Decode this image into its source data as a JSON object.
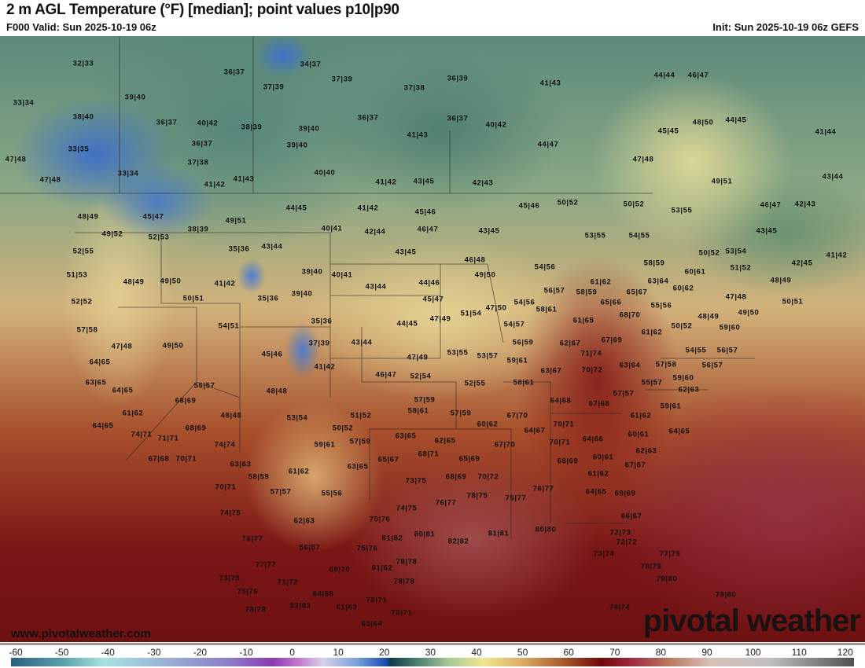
{
  "header": {
    "title": "2 m AGL Temperature (°F) [median]; point values p10|p90",
    "valid": "F000 Valid: Sun 2025-10-19 06z",
    "init": "Init: Sun 2025-10-19 06z GEFS"
  },
  "branding": {
    "url": "www.pivotalweather.com",
    "logo": "pivotal weather"
  },
  "colorbar": {
    "units": "°F",
    "ticks": [
      "-60",
      "-50",
      "-40",
      "-30",
      "-20",
      "-10",
      "0",
      "10",
      "20",
      "30",
      "40",
      "50",
      "60",
      "70",
      "80",
      "90",
      "100",
      "110",
      "120"
    ]
  },
  "point_values": [
    "32|33",
    "36|37",
    "34|37",
    "37|39",
    "37|39",
    "37|38",
    "36|39",
    "41|43",
    "44|44",
    "46|47",
    "39|40",
    "33|34",
    "38|40",
    "36|37",
    "40|42",
    "38|39",
    "39|40",
    "36|37",
    "36|37",
    "40|42",
    "45|45",
    "48|50",
    "44|45",
    "41|44",
    "41|43",
    "44|47",
    "33|35",
    "36|37",
    "39|40",
    "47|48",
    "37|38",
    "47|48",
    "33|34",
    "41|43",
    "40|40",
    "41|42",
    "43|45",
    "42|43",
    "49|51",
    "43|44",
    "47|48",
    "41|42",
    "48|49",
    "50|52",
    "50|52",
    "53|55",
    "46|47",
    "42|43",
    "45|46",
    "44|45",
    "41|42",
    "45|46",
    "45|47",
    "49|51",
    "40|41",
    "42|44",
    "46|47",
    "43|45",
    "38|39",
    "49|52",
    "52|53",
    "43|45",
    "53|55",
    "54|55",
    "35|36",
    "43|44",
    "43|45",
    "52|55",
    "50|52",
    "53|54",
    "41|42",
    "46|48",
    "42|45",
    "54|56",
    "58|59",
    "51|52",
    "51|53",
    "39|40",
    "40|41",
    "49|50",
    "60|61",
    "63|64",
    "48|49",
    "48|49",
    "49|50",
    "41|42",
    "43|44",
    "44|46",
    "61|62",
    "60|62",
    "56|57",
    "58|59",
    "65|67",
    "52|52",
    "50|51",
    "35|36",
    "39|40",
    "45|47",
    "54|56",
    "65|66",
    "55|56",
    "47|48",
    "50|51",
    "47|50",
    "58|61",
    "51|54",
    "68|70",
    "48|49",
    "49|50",
    "57|58",
    "54|51",
    "35|36",
    "44|45",
    "47|49",
    "54|57",
    "61|65",
    "50|52",
    "61|62",
    "59|60",
    "47|48",
    "49|50",
    "37|39",
    "43|44",
    "56|59",
    "62|67",
    "67|69",
    "54|55",
    "56|57",
    "53|55",
    "53|57",
    "71|74",
    "45|46",
    "47|49",
    "59|61",
    "64|65",
    "41|42",
    "63|64",
    "57|58",
    "56|57",
    "63|67",
    "70|72",
    "46|47",
    "52|54",
    "63|65",
    "58|61",
    "55|57",
    "59|60",
    "56|57",
    "52|55",
    "64|65",
    "48|48",
    "62|63",
    "57|57",
    "57|59",
    "68|69",
    "64|68",
    "67|68",
    "59|61",
    "61|62",
    "48|48",
    "51|52",
    "58|61",
    "57|59",
    "53|54",
    "67|70",
    "61|62",
    "60|62",
    "64|65",
    "68|69",
    "70|71",
    "50|52",
    "64|67",
    "64|66",
    "60|61",
    "64|65",
    "74|71",
    "71|71",
    "63|65",
    "62|65",
    "74|74",
    "59|61",
    "57|59",
    "67|70",
    "70|71",
    "62|63",
    "67|68",
    "70|71",
    "68|71",
    "63|63",
    "65|67",
    "65|69",
    "68|69",
    "60|61",
    "67|67",
    "63|65",
    "61|62",
    "58|59",
    "70|72",
    "61|62",
    "68|69",
    "73|75",
    "70|71",
    "57|57",
    "55|56",
    "76|77",
    "64|65",
    "69|69",
    "76|77",
    "78|75",
    "76|77",
    "74|75",
    "74|75",
    "62|63",
    "75|76",
    "66|67",
    "80|81",
    "81|82",
    "82|82",
    "81|81",
    "80|80",
    "76|77",
    "72|73",
    "72|72",
    "56|57",
    "75|76",
    "73|74",
    "77|79",
    "78|79",
    "77|77",
    "78|78",
    "69|70",
    "61|62",
    "78|78",
    "73|75",
    "71|72",
    "79|80",
    "75|76",
    "64|68",
    "79|80",
    "70|71",
    "61|63",
    "82|83",
    "78|78",
    "74|74",
    "70|71",
    "63|64"
  ]
}
